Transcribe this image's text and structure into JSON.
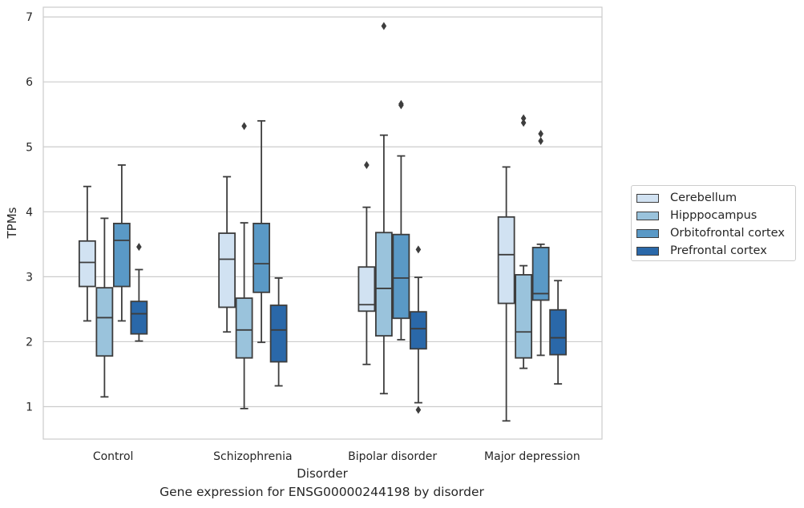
{
  "chart_data": {
    "type": "box",
    "title": "",
    "caption": "Gene expression for ENSG00000244198 by disorder",
    "xlabel": "Disorder",
    "ylabel": "TPMs",
    "ylim": [
      0.5,
      7.15
    ],
    "yticks": [
      1,
      2,
      3,
      4,
      5,
      6,
      7
    ],
    "grid": "horizontal",
    "legend_position": "right",
    "categories": [
      "Control",
      "Schizophrenia",
      "Bipolar disorder",
      "Major depression"
    ],
    "series": [
      {
        "name": "Cerebellum",
        "color": "#d1e2f2",
        "boxes": [
          {
            "whisker_low": 2.32,
            "q1": 2.85,
            "median": 3.22,
            "q3": 3.55,
            "whisker_high": 4.39,
            "outliers": []
          },
          {
            "whisker_low": 2.15,
            "q1": 2.53,
            "median": 3.27,
            "q3": 3.67,
            "whisker_high": 4.54,
            "outliers": []
          },
          {
            "whisker_low": 1.65,
            "q1": 2.47,
            "median": 2.57,
            "q3": 3.15,
            "whisker_high": 4.07,
            "outliers": [
              4.72
            ]
          },
          {
            "whisker_low": 0.78,
            "q1": 2.59,
            "median": 3.34,
            "q3": 3.92,
            "whisker_high": 4.69,
            "outliers": []
          }
        ]
      },
      {
        "name": "Hipppocampus",
        "color": "#9ac3dc",
        "boxes": [
          {
            "whisker_low": 1.15,
            "q1": 1.78,
            "median": 2.37,
            "q3": 2.83,
            "whisker_high": 3.9,
            "outliers": []
          },
          {
            "whisker_low": 0.97,
            "q1": 1.75,
            "median": 2.18,
            "q3": 2.67,
            "whisker_high": 3.83,
            "outliers": [
              5.32
            ]
          },
          {
            "whisker_low": 1.2,
            "q1": 2.09,
            "median": 2.82,
            "q3": 3.68,
            "whisker_high": 5.18,
            "outliers": [
              6.86
            ]
          },
          {
            "whisker_low": 1.59,
            "q1": 1.75,
            "median": 2.15,
            "q3": 3.03,
            "whisker_high": 3.17,
            "outliers": [
              5.37,
              5.44
            ]
          }
        ]
      },
      {
        "name": "Orbitofrontal cortex",
        "color": "#5a99c6",
        "boxes": [
          {
            "whisker_low": 2.32,
            "q1": 2.85,
            "median": 3.56,
            "q3": 3.82,
            "whisker_high": 4.72,
            "outliers": []
          },
          {
            "whisker_low": 1.99,
            "q1": 2.76,
            "median": 3.2,
            "q3": 3.82,
            "whisker_high": 5.4,
            "outliers": []
          },
          {
            "whisker_low": 2.03,
            "q1": 2.36,
            "median": 2.98,
            "q3": 3.65,
            "whisker_high": 4.86,
            "outliers": [
              5.64,
              5.66
            ]
          },
          {
            "whisker_low": 1.79,
            "q1": 2.64,
            "median": 2.74,
            "q3": 3.45,
            "whisker_high": 3.5,
            "outliers": [
              5.09,
              5.2
            ]
          }
        ]
      },
      {
        "name": "Prefrontal cortex",
        "color": "#2a68a9",
        "boxes": [
          {
            "whisker_low": 2.01,
            "q1": 2.12,
            "median": 2.43,
            "q3": 2.62,
            "whisker_high": 3.11,
            "outliers": [
              3.46
            ]
          },
          {
            "whisker_low": 1.32,
            "q1": 1.69,
            "median": 2.18,
            "q3": 2.56,
            "whisker_high": 2.98,
            "outliers": []
          },
          {
            "whisker_low": 1.06,
            "q1": 1.89,
            "median": 2.2,
            "q3": 2.46,
            "whisker_high": 2.99,
            "outliers": [
              0.95,
              3.42
            ]
          },
          {
            "whisker_low": 1.35,
            "q1": 1.8,
            "median": 2.06,
            "q3": 2.49,
            "whisker_high": 2.94,
            "outliers": []
          }
        ]
      }
    ]
  }
}
